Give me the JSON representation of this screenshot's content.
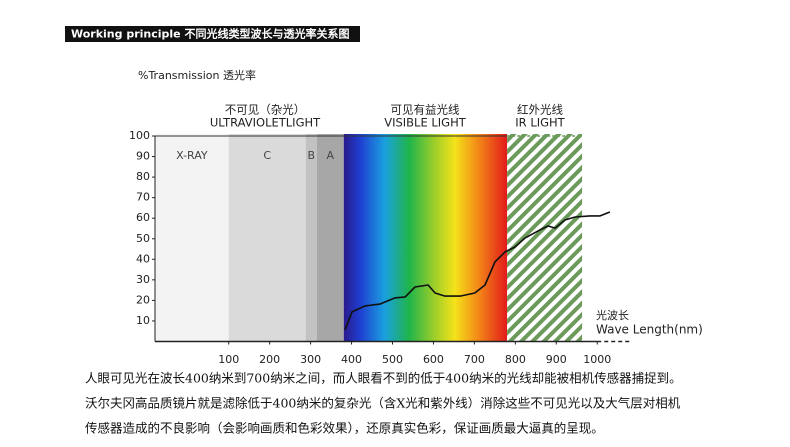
{
  "chart_data": {
    "type": "line",
    "title": "Working principle 不同光线类型波长与透光率关系图",
    "y_label": "%Transmission 透光率",
    "x_label": [
      "光波长",
      "Wave Length(nm)"
    ],
    "captions": [
      [
        "不可见（杂光）",
        "ULTRAVIOLETLIGHT"
      ],
      [
        "可见有益光线",
        "VISIBLE LIGHT"
      ],
      [
        "红外光线",
        "IR LIGHT"
      ]
    ],
    "regions": [
      {
        "label": "X-RAY",
        "from": -80,
        "to": 100,
        "fill": "#f3f3f3"
      },
      {
        "label": "C",
        "from": 100,
        "to": 288,
        "fill": "#dadada"
      },
      {
        "label": "B",
        "from": 288,
        "to": 315,
        "fill": "#c2c2c2"
      },
      {
        "label": "A",
        "from": 315,
        "to": 381,
        "fill": "#a7a7a7"
      },
      {
        "from": 381,
        "to": 780,
        "fill": "spectrum"
      },
      {
        "from": 780,
        "to": 963,
        "fill": "hatch",
        "color": "#6b9a5b"
      }
    ],
    "x": [
      384,
      401,
      433,
      469,
      506,
      531,
      555,
      587,
      604,
      628,
      665,
      701,
      726,
      750,
      775,
      799,
      824,
      860,
      880,
      897,
      921,
      946,
      982,
      1007,
      1031
    ],
    "series": [
      {
        "color": "#111111",
        "values": [
          5.6,
          14.4,
          17.3,
          18.2,
          21.2,
          21.7,
          26.5,
          27.5,
          23.6,
          22.1,
          22.1,
          23.6,
          27.5,
          38.7,
          43.6,
          46,
          50.4,
          54.3,
          56.2,
          55.2,
          59.1,
          60.6,
          61.1,
          61.1,
          63
        ]
      }
    ],
    "xlim": [
      -80,
      1080
    ],
    "ylim": [
      0,
      100
    ],
    "xticks": [
      100,
      200,
      300,
      400,
      500,
      600,
      700,
      800,
      900,
      1000
    ],
    "yticks": [
      10,
      20,
      30,
      40,
      50,
      60,
      70,
      80,
      90,
      100
    ],
    "description": [
      "人眼可见光在波长400纳米到700纳米之间，而人眼看不到的低于400纳米的光线却能被相机传感器捕捉到。",
      "沃尔夫冈高品质镜片就是滤除低于400纳米的复杂光（含X光和紫外线）消除这些不可见光以及大气层对相机",
      "传感器造成的不良影响（会影响画质和色彩效果），还原真实色彩，保证画质最大逼真的呈现。"
    ]
  }
}
